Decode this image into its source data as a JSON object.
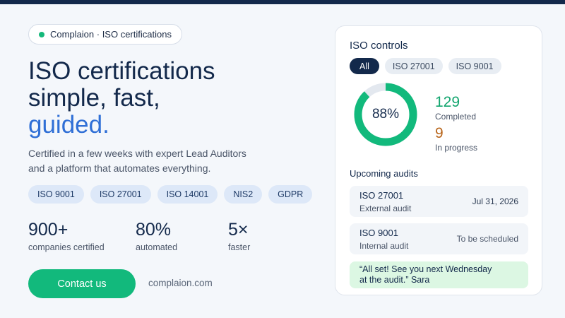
{
  "brand": {
    "badge_text": "Complaion · ISO certifications",
    "dot_color": "#14b87a",
    "website": "complaion.com"
  },
  "hero": {
    "headline_line1": "ISO certifications",
    "headline_line2": "simple, fast,",
    "headline_accent": "guided.",
    "subtext_line1": "Certified in a few weeks with expert Lead Auditors",
    "subtext_line2": "and a platform that automates everything.",
    "accent_color": "#2f6fd6"
  },
  "tags": [
    "ISO 9001",
    "ISO 27001",
    "ISO 14001",
    "NIS2",
    "GDPR"
  ],
  "stats": [
    {
      "value": "900+",
      "label": "companies certified"
    },
    {
      "value": "80%",
      "label": "automated"
    },
    {
      "value": "5×",
      "label": "faster"
    }
  ],
  "cta": {
    "label": "Contact us",
    "color": "#12b97c"
  },
  "card": {
    "title": "ISO controls",
    "filters": [
      {
        "label": "All",
        "active": true
      },
      {
        "label": "ISO 27001",
        "active": false
      },
      {
        "label": "ISO 9001",
        "active": false
      }
    ],
    "donut": {
      "percent": 88,
      "label": "88%",
      "fill_color": "#12b97c",
      "track_color": "#e3e8ef"
    },
    "completed": {
      "value": "129",
      "label": "Completed"
    },
    "in_progress": {
      "value": "9",
      "label": "In progress"
    },
    "upcoming_title": "Upcoming audits",
    "audits": [
      {
        "name": "ISO 27001",
        "type": "External audit",
        "date": "Jul 31, 2026"
      },
      {
        "name": "ISO 9001",
        "type": "Internal audit",
        "date": "To be scheduled"
      }
    ],
    "message": {
      "line1": "“All set! See you next Wednesday",
      "line2": "at the audit.” Sara"
    }
  }
}
